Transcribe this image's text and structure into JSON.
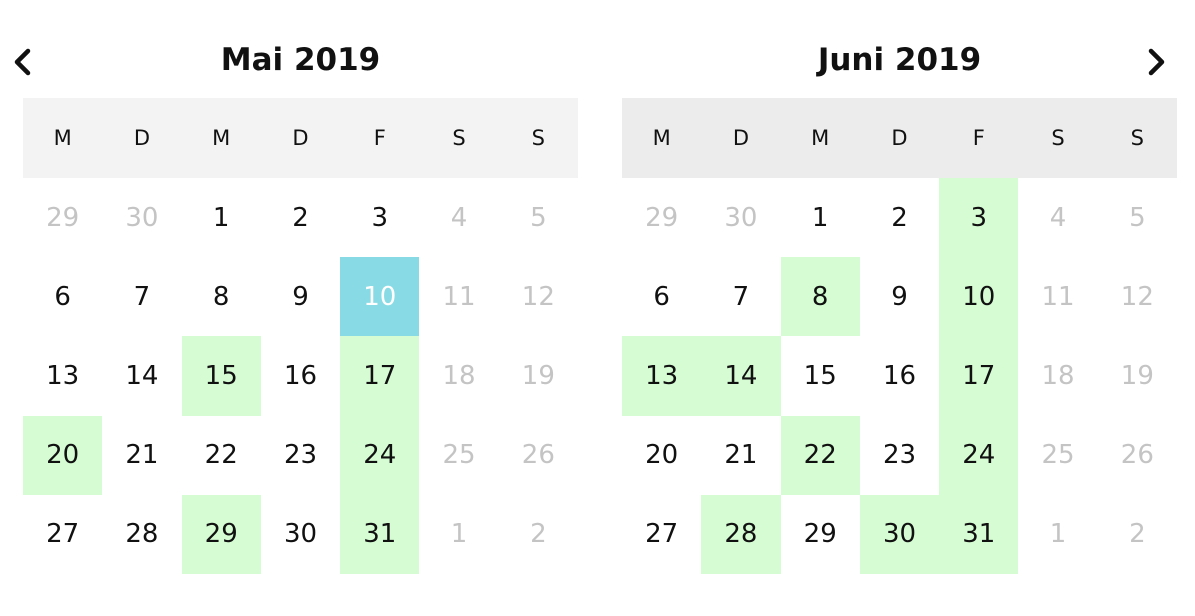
{
  "navigation": {
    "prev_icon": "chevron-left-icon",
    "next_icon": "chevron-right-icon"
  },
  "colors": {
    "available": "#d5fcd2",
    "selected": "#88dbe4",
    "muted_text": "#c4c4c4",
    "weekday_header": "#f3f3f3"
  },
  "calendars": [
    {
      "title": "Mai 2019",
      "weekdays": [
        "M",
        "D",
        "M",
        "D",
        "F",
        "S",
        "S"
      ],
      "weeks": [
        [
          {
            "d": "29",
            "s": "muted"
          },
          {
            "d": "30",
            "s": "muted"
          },
          {
            "d": "1",
            "s": ""
          },
          {
            "d": "2",
            "s": ""
          },
          {
            "d": "3",
            "s": ""
          },
          {
            "d": "4",
            "s": "muted"
          },
          {
            "d": "5",
            "s": "muted"
          }
        ],
        [
          {
            "d": "6",
            "s": ""
          },
          {
            "d": "7",
            "s": ""
          },
          {
            "d": "8",
            "s": ""
          },
          {
            "d": "9",
            "s": ""
          },
          {
            "d": "10",
            "s": "sel"
          },
          {
            "d": "11",
            "s": "muted"
          },
          {
            "d": "12",
            "s": "muted"
          }
        ],
        [
          {
            "d": "13",
            "s": ""
          },
          {
            "d": "14",
            "s": ""
          },
          {
            "d": "15",
            "s": "avail"
          },
          {
            "d": "16",
            "s": ""
          },
          {
            "d": "17",
            "s": "avail"
          },
          {
            "d": "18",
            "s": "muted"
          },
          {
            "d": "19",
            "s": "muted"
          }
        ],
        [
          {
            "d": "20",
            "s": "avail"
          },
          {
            "d": "21",
            "s": ""
          },
          {
            "d": "22",
            "s": ""
          },
          {
            "d": "23",
            "s": ""
          },
          {
            "d": "24",
            "s": "avail"
          },
          {
            "d": "25",
            "s": "muted"
          },
          {
            "d": "26",
            "s": "muted"
          }
        ],
        [
          {
            "d": "27",
            "s": ""
          },
          {
            "d": "28",
            "s": ""
          },
          {
            "d": "29",
            "s": "avail"
          },
          {
            "d": "30",
            "s": ""
          },
          {
            "d": "31",
            "s": "avail"
          },
          {
            "d": "1",
            "s": "muted"
          },
          {
            "d": "2",
            "s": "muted"
          }
        ]
      ]
    },
    {
      "title": "Juni 2019",
      "weekdays": [
        "M",
        "D",
        "M",
        "D",
        "F",
        "S",
        "S"
      ],
      "weeks": [
        [
          {
            "d": "29",
            "s": "muted"
          },
          {
            "d": "30",
            "s": "muted"
          },
          {
            "d": "1",
            "s": ""
          },
          {
            "d": "2",
            "s": ""
          },
          {
            "d": "3",
            "s": "avail"
          },
          {
            "d": "4",
            "s": "muted"
          },
          {
            "d": "5",
            "s": "muted"
          }
        ],
        [
          {
            "d": "6",
            "s": ""
          },
          {
            "d": "7",
            "s": ""
          },
          {
            "d": "8",
            "s": "avail"
          },
          {
            "d": "9",
            "s": ""
          },
          {
            "d": "10",
            "s": "avail"
          },
          {
            "d": "11",
            "s": "muted"
          },
          {
            "d": "12",
            "s": "muted"
          }
        ],
        [
          {
            "d": "13",
            "s": "avail"
          },
          {
            "d": "14",
            "s": "avail"
          },
          {
            "d": "15",
            "s": ""
          },
          {
            "d": "16",
            "s": ""
          },
          {
            "d": "17",
            "s": "avail"
          },
          {
            "d": "18",
            "s": "muted"
          },
          {
            "d": "19",
            "s": "muted"
          }
        ],
        [
          {
            "d": "20",
            "s": ""
          },
          {
            "d": "21",
            "s": ""
          },
          {
            "d": "22",
            "s": "avail"
          },
          {
            "d": "23",
            "s": ""
          },
          {
            "d": "24",
            "s": "avail"
          },
          {
            "d": "25",
            "s": "muted"
          },
          {
            "d": "26",
            "s": "muted"
          }
        ],
        [
          {
            "d": "27",
            "s": ""
          },
          {
            "d": "28",
            "s": "avail"
          },
          {
            "d": "29",
            "s": ""
          },
          {
            "d": "30",
            "s": "avail"
          },
          {
            "d": "31",
            "s": "avail"
          },
          {
            "d": "1",
            "s": "muted"
          },
          {
            "d": "2",
            "s": "muted"
          }
        ]
      ]
    }
  ]
}
